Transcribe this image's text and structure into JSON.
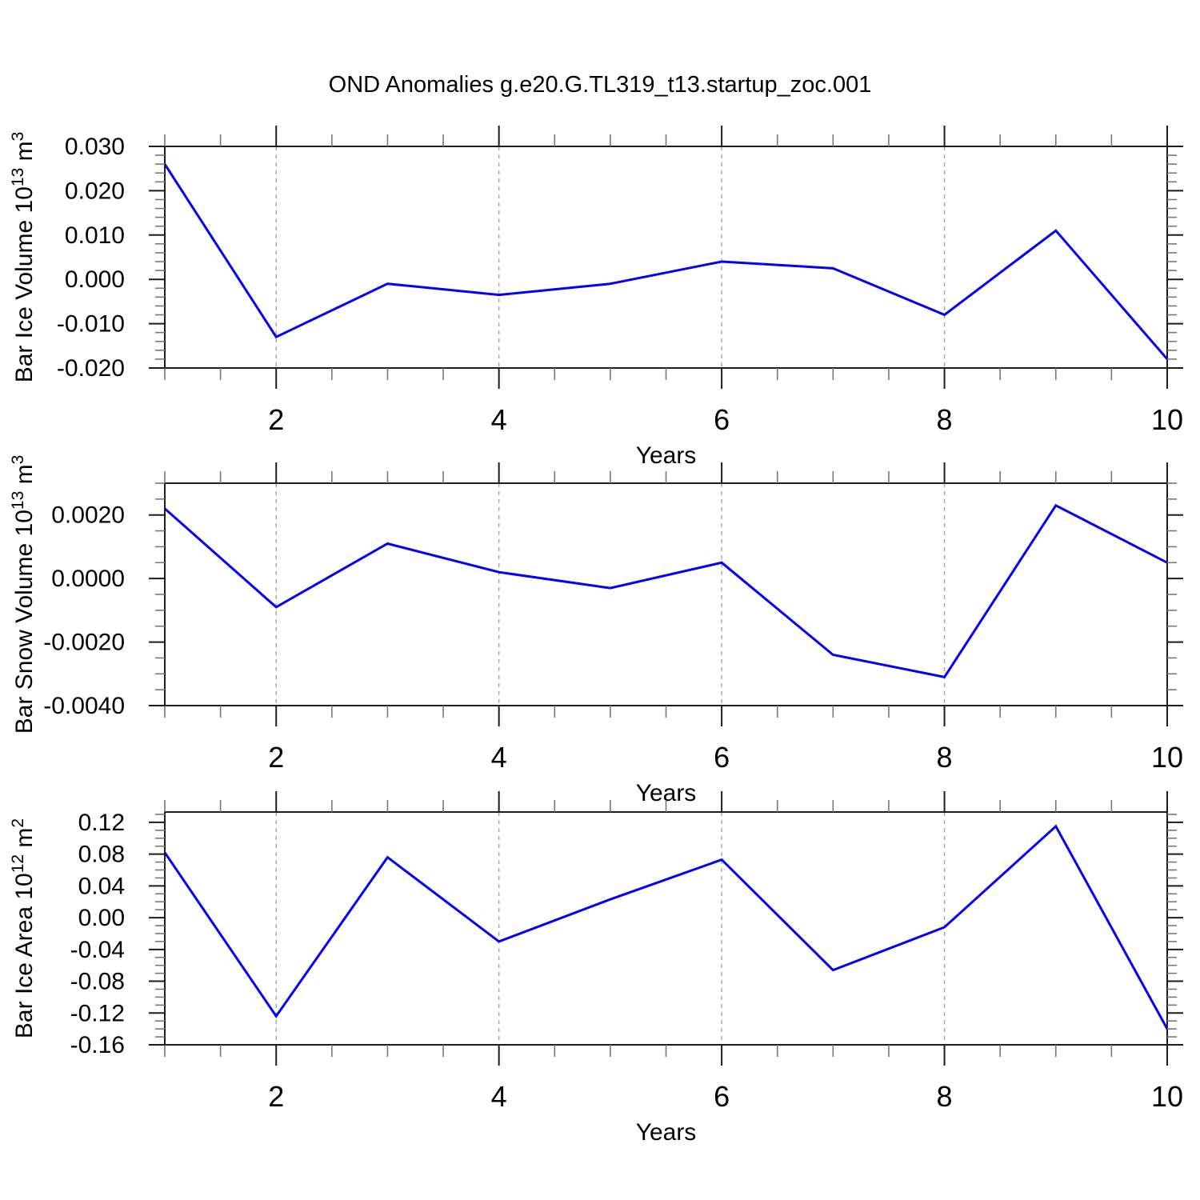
{
  "title": "OND Anomalies g.e20.G.TL319_t13.startup_zoc.001",
  "colors": {
    "line": "#0000ff",
    "grid": "#a9a9a9",
    "axis": "#1c1c1c",
    "text": "#000000",
    "background": "#ffffff"
  },
  "chart_data": [
    {
      "type": "line",
      "ylabel": "Bar Ice Volume 10^{13} m^{3}",
      "xlabel": "Years",
      "x": [
        1,
        2,
        3,
        4,
        5,
        6,
        7,
        8,
        9,
        10
      ],
      "values": [
        0.026,
        -0.013,
        -0.001,
        -0.0035,
        -0.001,
        0.004,
        0.0025,
        -0.008,
        0.011,
        -0.018
      ],
      "xlim": [
        1,
        10
      ],
      "ylim": [
        -0.02,
        0.03
      ],
      "yticks": [
        0.03,
        0.02,
        0.01,
        0.0,
        -0.01,
        -0.02
      ],
      "ytick_labels": [
        "0.030",
        "0.020",
        "0.010",
        "0.000",
        "-0.010",
        "-0.020"
      ],
      "y_minor_step": 0.002,
      "xticks": [
        2,
        4,
        6,
        8,
        10
      ],
      "xtick_labels": [
        "2",
        "4",
        "6",
        "8",
        "10"
      ],
      "x_minor_step": 0.5,
      "grid_x": [
        2,
        4,
        6,
        8
      ],
      "line_color": "#0000ff",
      "grid_style": "vertical-dashed",
      "legend": "none"
    },
    {
      "type": "line",
      "ylabel": "Bar Snow Volume 10^{13} m^{3}",
      "xlabel": "Years",
      "x": [
        1,
        2,
        3,
        4,
        5,
        6,
        7,
        8,
        9,
        10
      ],
      "values": [
        0.0022,
        -0.0009,
        0.0011,
        0.0002,
        -0.0003,
        0.0005,
        -0.0024,
        -0.0031,
        0.0023,
        0.0005
      ],
      "xlim": [
        1,
        10
      ],
      "ylim": [
        -0.004,
        0.003
      ],
      "yticks": [
        0.002,
        0.0,
        -0.002,
        -0.004
      ],
      "ytick_labels": [
        "0.0020",
        "0.0000",
        "-0.0020",
        "-0.0040"
      ],
      "y_minor_step": 0.0005,
      "xticks": [
        2,
        4,
        6,
        8,
        10
      ],
      "xtick_labels": [
        "2",
        "4",
        "6",
        "8",
        "10"
      ],
      "x_minor_step": 0.5,
      "grid_x": [
        2,
        4,
        6,
        8
      ],
      "line_color": "#0000ff",
      "grid_style": "vertical-dashed",
      "legend": "none"
    },
    {
      "type": "line",
      "ylabel": "Bar Ice Area 10^{12} m^{2}",
      "xlabel": "Years",
      "x": [
        1,
        2,
        3,
        4,
        5,
        6,
        7,
        8,
        9,
        10
      ],
      "values": [
        0.082,
        -0.124,
        0.076,
        -0.03,
        0.023,
        0.073,
        -0.066,
        -0.012,
        0.115,
        -0.14
      ],
      "xlim": [
        1,
        10
      ],
      "ylim": [
        -0.16,
        0.133
      ],
      "yticks": [
        0.12,
        0.08,
        0.04,
        0.0,
        -0.04,
        -0.08,
        -0.12,
        -0.16
      ],
      "ytick_labels": [
        "0.12",
        "0.08",
        "0.04",
        "0.00",
        "-0.04",
        "-0.08",
        "-0.12",
        "-0.16"
      ],
      "y_minor_step": 0.01,
      "xticks": [
        2,
        4,
        6,
        8,
        10
      ],
      "xtick_labels": [
        "2",
        "4",
        "6",
        "8",
        "10"
      ],
      "x_minor_step": 0.5,
      "grid_x": [
        2,
        4,
        6,
        8
      ],
      "line_color": "#0000ff",
      "grid_style": "vertical-dashed",
      "legend": "none"
    }
  ]
}
